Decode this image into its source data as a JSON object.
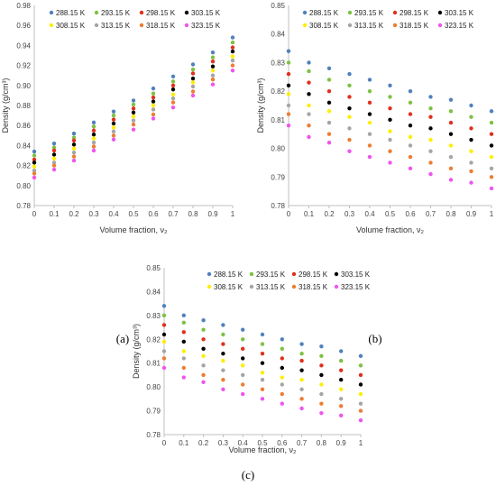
{
  "figure": {
    "panel_labels": [
      "(a)",
      "(b)",
      "(c)"
    ]
  },
  "chart_data": [
    {
      "type": "scatter",
      "panel": "(a)",
      "xlabel": "Volume fraction, ν₂",
      "ylabel": "Density (g/cm³)",
      "xlim": [
        0,
        1
      ],
      "ylim": [
        0.78,
        0.98
      ],
      "xticks": [
        "0",
        "0.1",
        "0.2",
        "0.3",
        "0.4",
        "0.5",
        "0.6",
        "0.7",
        "0.8",
        "0.9",
        "1"
      ],
      "yticks": [
        "0.78",
        "0.80",
        "0.82",
        "0.84",
        "0.86",
        "0.88",
        "0.90",
        "0.92",
        "0.94",
        "0.96",
        "0.98"
      ],
      "grid": false,
      "legend_position": "top",
      "x": [
        0,
        0.1,
        0.2,
        0.3,
        0.4,
        0.5,
        0.6,
        0.7,
        0.8,
        0.9,
        1.0
      ],
      "series": [
        {
          "name": "288.15 K",
          "color": "#4f81bd",
          "values": [
            0.834,
            0.842,
            0.852,
            0.863,
            0.874,
            0.885,
            0.897,
            0.909,
            0.921,
            0.933,
            0.948
          ]
        },
        {
          "name": "293.15 K",
          "color": "#7dc142",
          "values": [
            0.83,
            0.838,
            0.848,
            0.859,
            0.87,
            0.881,
            0.892,
            0.904,
            0.916,
            0.928,
            0.943
          ]
        },
        {
          "name": "298.15 K",
          "color": "#e0301e",
          "values": [
            0.826,
            0.835,
            0.845,
            0.855,
            0.866,
            0.877,
            0.888,
            0.9,
            0.912,
            0.924,
            0.938
          ]
        },
        {
          "name": "303.15 K",
          "color": "#000000",
          "values": [
            0.823,
            0.831,
            0.841,
            0.851,
            0.862,
            0.873,
            0.884,
            0.896,
            0.907,
            0.919,
            0.934
          ]
        },
        {
          "name": "308.15 K",
          "color": "#ffee00",
          "values": [
            0.819,
            0.827,
            0.837,
            0.847,
            0.858,
            0.869,
            0.88,
            0.891,
            0.903,
            0.915,
            0.929
          ]
        },
        {
          "name": "313.15 K",
          "color": "#a5a5a5",
          "values": [
            0.815,
            0.823,
            0.833,
            0.843,
            0.854,
            0.865,
            0.876,
            0.887,
            0.899,
            0.91,
            0.925
          ]
        },
        {
          "name": "318.15 K",
          "color": "#ed7d31",
          "values": [
            0.812,
            0.82,
            0.829,
            0.839,
            0.85,
            0.861,
            0.871,
            0.883,
            0.894,
            0.906,
            0.92
          ]
        },
        {
          "name": "323.15 K",
          "color": "#ee55ee",
          "values": [
            0.808,
            0.816,
            0.825,
            0.835,
            0.846,
            0.856,
            0.867,
            0.878,
            0.89,
            0.901,
            0.915
          ]
        }
      ]
    },
    {
      "type": "scatter",
      "panel": "(b)",
      "xlabel": "Volume fraction, ν₂",
      "ylabel": "Density (g/cm³)",
      "xlim": [
        0,
        1
      ],
      "ylim": [
        0.78,
        0.85
      ],
      "xticks": [
        "0",
        "0.1",
        "0.2",
        "0.3",
        "0.4",
        "0.5",
        "0.6",
        "0.7",
        "0.8",
        "0.9",
        "1"
      ],
      "yticks": [
        "0.78",
        "0.79",
        "0.80",
        "0.81",
        "0.82",
        "0.83",
        "0.84",
        "0.85"
      ],
      "grid": false,
      "legend_position": "top",
      "x": [
        0,
        0.1,
        0.2,
        0.3,
        0.4,
        0.5,
        0.6,
        0.7,
        0.8,
        0.9,
        1.0
      ],
      "series": [
        {
          "name": "288.15 K",
          "color": "#4f81bd",
          "values": [
            0.834,
            0.83,
            0.828,
            0.826,
            0.824,
            0.822,
            0.82,
            0.818,
            0.817,
            0.815,
            0.813
          ]
        },
        {
          "name": "293.15 K",
          "color": "#7dc142",
          "values": [
            0.83,
            0.827,
            0.824,
            0.822,
            0.82,
            0.818,
            0.816,
            0.814,
            0.813,
            0.811,
            0.809
          ]
        },
        {
          "name": "298.15 K",
          "color": "#e0301e",
          "values": [
            0.826,
            0.823,
            0.82,
            0.818,
            0.816,
            0.814,
            0.812,
            0.811,
            0.809,
            0.807,
            0.805
          ]
        },
        {
          "name": "303.15 K",
          "color": "#000000",
          "values": [
            0.822,
            0.819,
            0.816,
            0.814,
            0.812,
            0.81,
            0.808,
            0.807,
            0.805,
            0.803,
            0.801
          ]
        },
        {
          "name": "308.15 K",
          "color": "#ffee00",
          "values": [
            0.819,
            0.815,
            0.813,
            0.811,
            0.809,
            0.806,
            0.804,
            0.803,
            0.801,
            0.799,
            0.797
          ]
        },
        {
          "name": "313.15 K",
          "color": "#a5a5a5",
          "values": [
            0.815,
            0.812,
            0.809,
            0.807,
            0.805,
            0.803,
            0.801,
            0.799,
            0.797,
            0.795,
            0.793
          ]
        },
        {
          "name": "318.15 K",
          "color": "#ed7d31",
          "values": [
            0.812,
            0.808,
            0.805,
            0.803,
            0.801,
            0.799,
            0.797,
            0.795,
            0.793,
            0.792,
            0.79
          ]
        },
        {
          "name": "323.15 K",
          "color": "#ee55ee",
          "values": [
            0.808,
            0.804,
            0.802,
            0.799,
            0.797,
            0.795,
            0.793,
            0.791,
            0.789,
            0.788,
            0.786
          ]
        }
      ]
    },
    {
      "type": "scatter",
      "panel": "(c)",
      "xlabel": "Volume fraction, ν₂",
      "ylabel": "Density (g/cm³)",
      "xlim": [
        0,
        1
      ],
      "ylim": [
        0.78,
        0.85
      ],
      "xticks": [
        "0",
        "0.1",
        "0.2",
        "0.3",
        "0.4",
        "0.5",
        "0.6",
        "0.7",
        "0.8",
        "0.9",
        "1"
      ],
      "yticks": [
        "0.78",
        "0.79",
        "0.80",
        "0.81",
        "0.82",
        "0.83",
        "0.84",
        "0.85"
      ],
      "grid": false,
      "legend_position": "top",
      "x": [
        0,
        0.1,
        0.2,
        0.3,
        0.4,
        0.5,
        0.6,
        0.7,
        0.8,
        0.9,
        1.0
      ],
      "series": [
        {
          "name": "288.15 K",
          "color": "#4f81bd",
          "values": [
            0.834,
            0.83,
            0.828,
            0.826,
            0.824,
            0.822,
            0.82,
            0.818,
            0.817,
            0.815,
            0.813
          ]
        },
        {
          "name": "293.15 K",
          "color": "#7dc142",
          "values": [
            0.83,
            0.827,
            0.824,
            0.822,
            0.82,
            0.818,
            0.816,
            0.814,
            0.813,
            0.811,
            0.809
          ]
        },
        {
          "name": "298.15 K",
          "color": "#e0301e",
          "values": [
            0.826,
            0.823,
            0.82,
            0.818,
            0.816,
            0.814,
            0.812,
            0.811,
            0.809,
            0.807,
            0.805
          ]
        },
        {
          "name": "303.15 K",
          "color": "#000000",
          "values": [
            0.822,
            0.819,
            0.816,
            0.814,
            0.812,
            0.81,
            0.808,
            0.807,
            0.805,
            0.803,
            0.801
          ]
        },
        {
          "name": "308.15 K",
          "color": "#ffee00",
          "values": [
            0.819,
            0.815,
            0.813,
            0.811,
            0.809,
            0.806,
            0.804,
            0.803,
            0.801,
            0.799,
            0.797
          ]
        },
        {
          "name": "313.15 K",
          "color": "#a5a5a5",
          "values": [
            0.815,
            0.812,
            0.809,
            0.807,
            0.805,
            0.803,
            0.801,
            0.799,
            0.797,
            0.795,
            0.793
          ]
        },
        {
          "name": "318.15 K",
          "color": "#ed7d31",
          "values": [
            0.812,
            0.808,
            0.805,
            0.803,
            0.801,
            0.799,
            0.797,
            0.795,
            0.793,
            0.792,
            0.79
          ]
        },
        {
          "name": "323.15 K",
          "color": "#ee55ee",
          "values": [
            0.808,
            0.804,
            0.802,
            0.799,
            0.797,
            0.795,
            0.793,
            0.791,
            0.789,
            0.788,
            0.786
          ]
        }
      ]
    }
  ]
}
